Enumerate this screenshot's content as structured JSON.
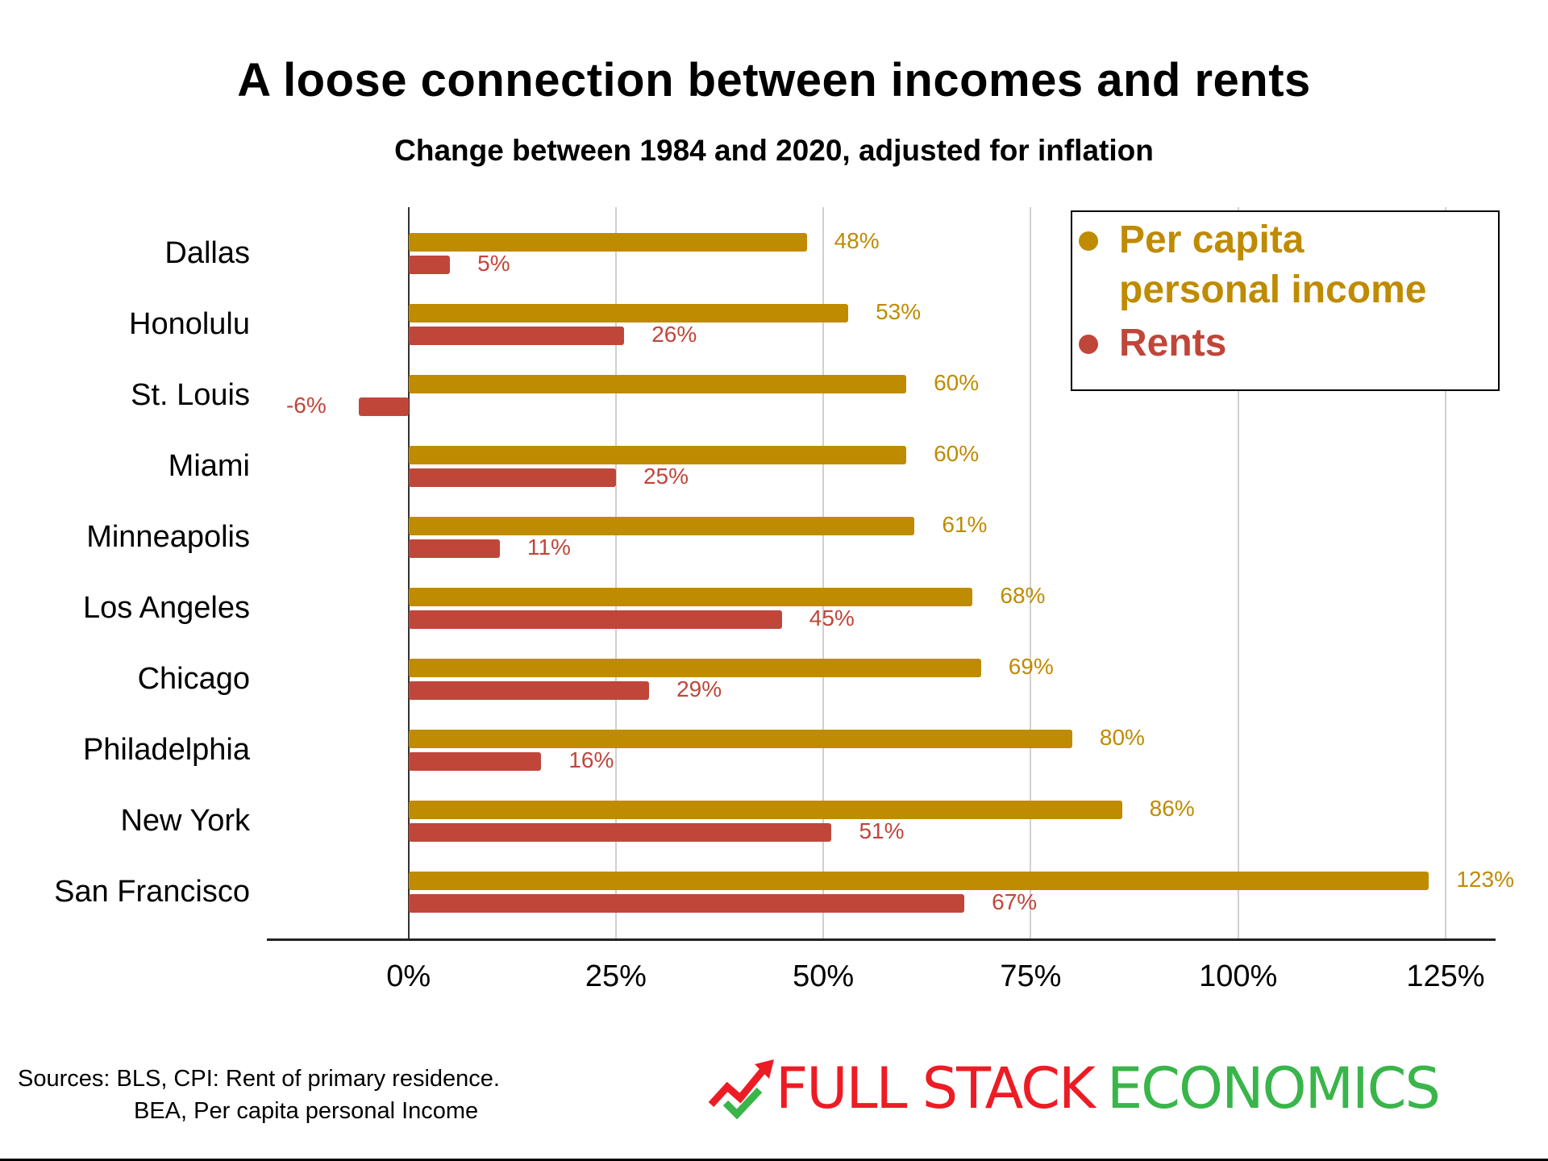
{
  "header": {
    "title": "A loose connection between incomes and rents",
    "subtitle": "Change between 1984 and 2020, adjusted for inflation"
  },
  "legend": {
    "items": [
      {
        "label_line1": "Per capita",
        "label_line2": "personal income",
        "color": "#BF8B00"
      },
      {
        "label_line1": "Rents",
        "color": "#C0463A"
      }
    ]
  },
  "axis": {
    "ticks": [
      "0%",
      "25%",
      "50%",
      "75%",
      "100%",
      "125%"
    ]
  },
  "footer": {
    "sources_line1": "Sources: BLS, CPI: Rent of primary residence.",
    "sources_line2": "BEA, Per capita personal Income",
    "logo_part1": "FULL STACK",
    "logo_part2": "ECONOMICS"
  },
  "colors": {
    "income": "#BF8B00",
    "rents": "#C0463A",
    "logo_red": "#ED1C24",
    "logo_green": "#39B54A"
  },
  "chart_data": {
    "type": "bar",
    "orientation": "horizontal",
    "title": "A loose connection between incomes and rents",
    "subtitle": "Change between 1984 and 2020, adjusted for inflation",
    "xlabel": "",
    "ylabel": "",
    "xlim": [
      -17,
      131
    ],
    "x_ticks": [
      0,
      25,
      50,
      75,
      100,
      125
    ],
    "x_tick_labels": [
      "0%",
      "25%",
      "50%",
      "75%",
      "100%",
      "125%"
    ],
    "grid": "vertical",
    "legend_position": "top-right",
    "categories": [
      "Dallas",
      "Honolulu",
      "St. Louis",
      "Miami",
      "Minneapolis",
      "Los Angeles",
      "Chicago",
      "Philadelphia",
      "New York",
      "San Francisco"
    ],
    "series": [
      {
        "name": "Per capita personal income",
        "color": "#BF8B00",
        "values": [
          48,
          53,
          60,
          60,
          61,
          68,
          69,
          80,
          86,
          123
        ],
        "labels": [
          "48%",
          "53%",
          "60%",
          "60%",
          "61%",
          "68%",
          "69%",
          "80%",
          "86%",
          "123%"
        ]
      },
      {
        "name": "Rents",
        "color": "#C0463A",
        "values": [
          5,
          26,
          -6,
          25,
          11,
          45,
          29,
          16,
          51,
          67
        ],
        "labels": [
          "5%",
          "26%",
          "-6%",
          "25%",
          "11%",
          "45%",
          "29%",
          "16%",
          "51%",
          "67%"
        ]
      }
    ],
    "source": "Sources: BLS, CPI: Rent of primary residence. BEA, Per capita personal Income"
  }
}
